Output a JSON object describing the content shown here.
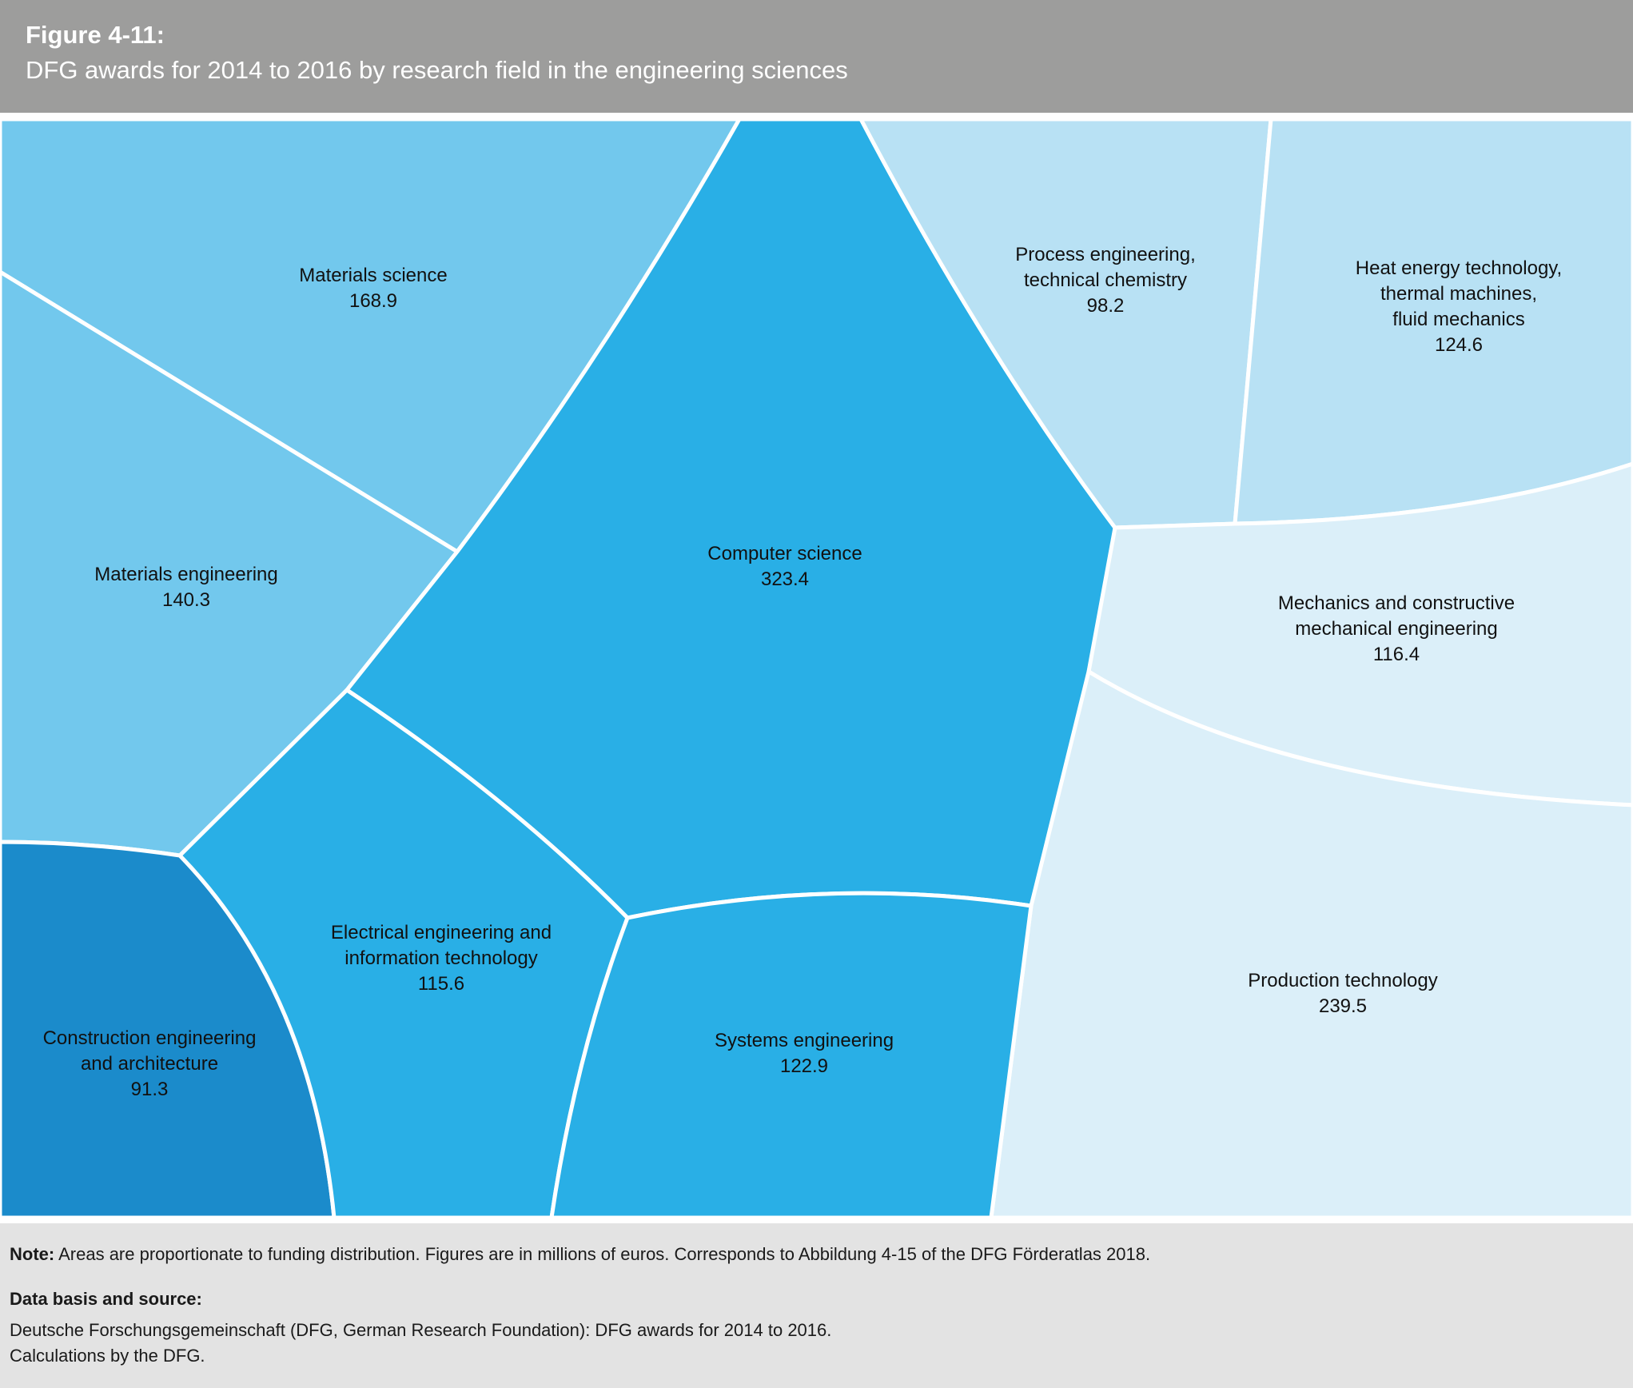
{
  "header": {
    "figure_number": "Figure 4-11:",
    "title": "DFG awards for 2014 to 2016 by research field in the engineering sciences"
  },
  "chart_data": {
    "type": "voronoi-treemap",
    "title": "DFG awards for 2014 to 2016 by research field in the engineering sciences",
    "unit": "millions of euros",
    "cells": [
      {
        "id": "materials-science",
        "label_lines": [
          "Materials science"
        ],
        "value": "168.9",
        "color": "#72c8ed"
      },
      {
        "id": "materials-engineering",
        "label_lines": [
          "Materials engineering"
        ],
        "value": "140.3",
        "color": "#72c8ed"
      },
      {
        "id": "computer-science",
        "label_lines": [
          "Computer science"
        ],
        "value": "323.4",
        "color": "#29afe6"
      },
      {
        "id": "process-engineering",
        "label_lines": [
          "Process engineering,",
          "technical chemistry"
        ],
        "value": "98.2",
        "color": "#b8e1f4"
      },
      {
        "id": "heat-energy",
        "label_lines": [
          "Heat energy technology,",
          "thermal machines,",
          "fluid mechanics"
        ],
        "value": "124.6",
        "color": "#b8e1f4"
      },
      {
        "id": "mechanics",
        "label_lines": [
          "Mechanics and constructive",
          "mechanical engineering"
        ],
        "value": "116.4",
        "color": "#dbeff9"
      },
      {
        "id": "production-technology",
        "label_lines": [
          "Production technology"
        ],
        "value": "239.5",
        "color": "#dbeff9"
      },
      {
        "id": "construction-engineering",
        "label_lines": [
          "Construction engineering",
          "and architecture"
        ],
        "value": "91.3",
        "color": "#1b8bcb"
      },
      {
        "id": "electrical-engineering",
        "label_lines": [
          "Electrical engineering and",
          "information technology"
        ],
        "value": "115.6",
        "color": "#29afe6"
      },
      {
        "id": "systems-engineering",
        "label_lines": [
          "Systems engineering"
        ],
        "value": "122.9",
        "color": "#29afe6"
      }
    ]
  },
  "footer": {
    "note_label": "Note:",
    "note_text": " Areas are proportionate to funding distribution. Figures are in millions of euros. Corresponds to Abbildung 4-15 of the DFG Förderatlas 2018.",
    "source_heading": "Data basis and source:",
    "source_line1": "Deutsche Forschungsgemeinschaft (DFG, German Research Foundation): DFG awards for 2014 to 2016.",
    "source_line2": "Calculations by the DFG."
  }
}
